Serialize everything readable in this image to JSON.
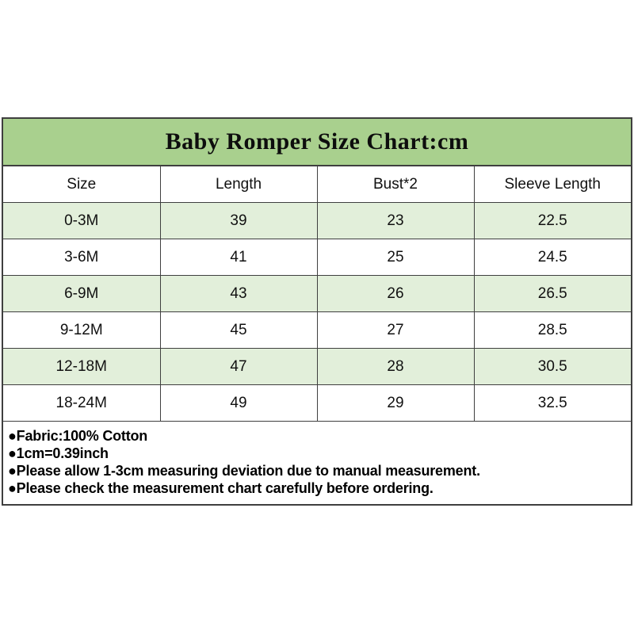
{
  "title": "Baby Romper Size Chart:cm",
  "chart_data": {
    "type": "table",
    "title": "Baby Romper Size Chart:cm",
    "units": "cm",
    "columns": [
      "Size",
      "Length",
      "Bust*2",
      "Sleeve Length"
    ],
    "rows": [
      [
        "0-3M",
        "39",
        "23",
        "22.5"
      ],
      [
        "3-6M",
        "41",
        "25",
        "24.5"
      ],
      [
        "6-9M",
        "43",
        "26",
        "26.5"
      ],
      [
        "9-12M",
        "45",
        "27",
        "28.5"
      ],
      [
        "12-18M",
        "47",
        "28",
        "30.5"
      ],
      [
        "18-24M",
        "49",
        "29",
        "32.5"
      ]
    ]
  },
  "notes": [
    "●Fabric:100% Cotton",
    "●1cm=0.39inch",
    "●Please allow 1-3cm measuring deviation due to manual measurement.",
    "●Please check the measurement chart carefully before ordering."
  ],
  "colors": {
    "title_background": "#A9D08E",
    "row_highlight": "#E2EFDA",
    "row_plain": "#FFFFFF",
    "border": "#3F3F3F",
    "text": "#000000",
    "page_background": "#FFFFFF"
  }
}
